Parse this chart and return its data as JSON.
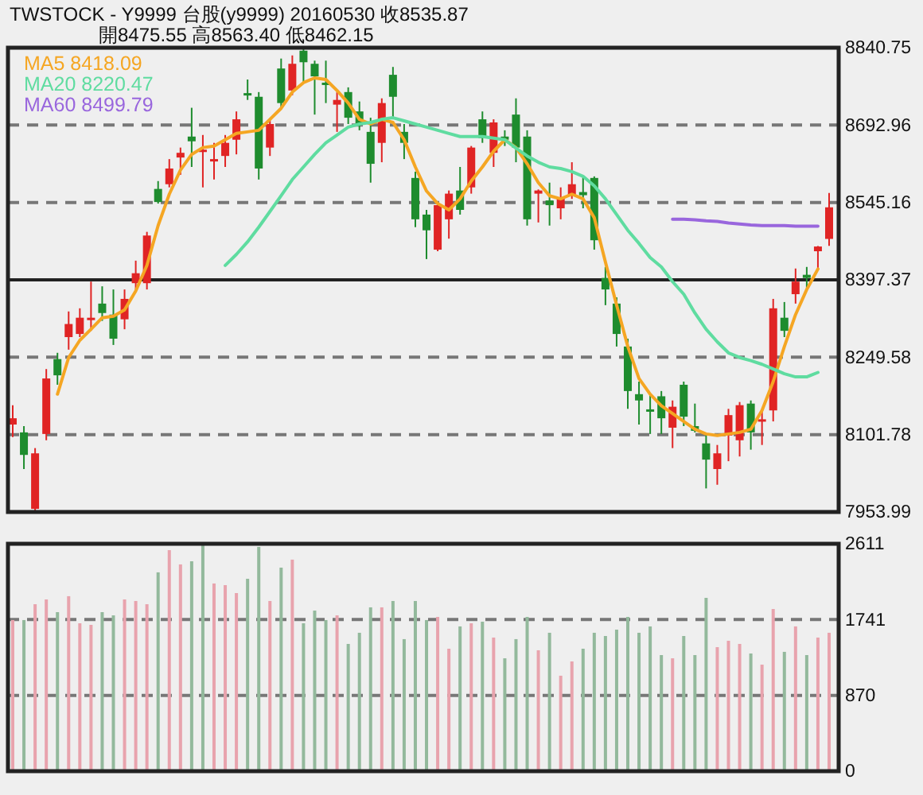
{
  "chart_data": [
    {
      "type": "candlestick",
      "title": "TWSTOCK  - Y9999  台股(y9999) 20160530    收8535.87",
      "subtitle": "開8475.55     高8563.40     低8462.15",
      "categories": [
        null,
        null,
        null,
        null,
        null,
        null,
        null,
        null,
        null,
        null,
        null,
        null,
        null,
        null,
        null,
        null,
        null,
        null,
        null,
        null,
        null,
        null,
        null,
        null,
        null,
        null,
        null,
        null,
        null,
        null,
        null,
        null,
        null,
        null,
        null,
        null,
        null,
        null,
        null,
        null,
        null,
        null,
        null,
        null,
        null,
        null,
        null,
        null,
        null,
        null,
        null,
        null,
        null,
        null,
        null,
        null,
        null,
        null,
        null,
        null,
        null,
        null,
        null,
        null,
        null,
        null,
        null,
        null,
        null,
        null,
        null,
        null,
        null,
        null
      ],
      "ohlc": [
        [
          8121,
          8158,
          8097,
          8133
        ],
        [
          8106,
          8118,
          8036,
          8063
        ],
        [
          7960,
          8076,
          7955,
          8066
        ],
        [
          8103,
          8227,
          8091,
          8209
        ],
        [
          8246,
          8258,
          8197,
          8215
        ],
        [
          8288,
          8337,
          8264,
          8313
        ],
        [
          8294,
          8343,
          8288,
          8325
        ],
        [
          8322,
          8394,
          8300,
          8325
        ],
        [
          8352,
          8385,
          8319,
          8334
        ],
        [
          8331,
          8379,
          8273,
          8285
        ],
        [
          8322,
          8379,
          8303,
          8361
        ],
        [
          8391,
          8434,
          8379,
          8410
        ],
        [
          8391,
          8489,
          8379,
          8482
        ],
        [
          8571,
          8586,
          8543,
          8546
        ],
        [
          8580,
          8628,
          8574,
          8610
        ],
        [
          8631,
          8650,
          8598,
          8640
        ],
        [
          8671,
          8726,
          8613,
          8662
        ],
        [
          8643,
          8674,
          8574,
          8646
        ],
        [
          8626,
          8659,
          8589,
          8628
        ],
        [
          8634,
          8674,
          8613,
          8659
        ],
        [
          8665,
          8719,
          8637,
          8704
        ],
        [
          8754,
          8780,
          8741,
          8752
        ],
        [
          8747,
          8756,
          8589,
          8610
        ],
        [
          8650,
          8704,
          8634,
          8695
        ],
        [
          8801,
          8820,
          8726,
          8735
        ],
        [
          8759,
          8826,
          8750,
          8810
        ],
        [
          8835,
          8840,
          8774,
          8813
        ],
        [
          8810,
          8816,
          8713,
          8786
        ],
        [
          8774,
          8816,
          8735,
          8771
        ],
        [
          8732,
          8756,
          8680,
          8741
        ],
        [
          8756,
          8765,
          8695,
          8707
        ],
        [
          8719,
          8738,
          8683,
          8695
        ],
        [
          8680,
          8707,
          8583,
          8619
        ],
        [
          8659,
          8744,
          8622,
          8735
        ],
        [
          8789,
          8804,
          8704,
          8747
        ],
        [
          8680,
          8695,
          8628,
          8659
        ],
        [
          8592,
          8604,
          8498,
          8513
        ],
        [
          8522,
          8531,
          8437,
          8492
        ],
        [
          8455,
          8546,
          8452,
          8540
        ],
        [
          8513,
          8568,
          8476,
          8562
        ],
        [
          8568,
          8613,
          8522,
          8531
        ],
        [
          8574,
          8653,
          8562,
          8650
        ],
        [
          8704,
          8719,
          8659,
          8668
        ],
        [
          8640,
          8704,
          8613,
          8698
        ],
        [
          8671,
          8683,
          8653,
          8665
        ],
        [
          8713,
          8744,
          8622,
          8650
        ],
        [
          8671,
          8683,
          8501,
          8513
        ],
        [
          8562,
          8570,
          8507,
          8568
        ],
        [
          8549,
          8583,
          8501,
          8540
        ],
        [
          8534,
          8574,
          8513,
          8555
        ],
        [
          8559,
          8622,
          8552,
          8580
        ],
        [
          8565,
          8595,
          8534,
          8559
        ],
        [
          8592,
          8595,
          8455,
          8473
        ],
        [
          8401,
          8422,
          8349,
          8379
        ],
        [
          8352,
          8364,
          8270,
          8294
        ],
        [
          8270,
          8285,
          8151,
          8185
        ],
        [
          8179,
          8203,
          8121,
          8167
        ],
        [
          8150,
          8179,
          8103,
          8148
        ],
        [
          8175,
          8185,
          8103,
          8133
        ],
        [
          8115,
          8167,
          8076,
          8155
        ],
        [
          8197,
          8203,
          8118,
          8136
        ],
        [
          8118,
          8161,
          8106,
          8109
        ],
        [
          8085,
          8103,
          7999,
          8054
        ],
        [
          8036,
          8082,
          8006,
          8066
        ],
        [
          8100,
          8151,
          8051,
          8139
        ],
        [
          8091,
          8164,
          8060,
          8158
        ],
        [
          8161,
          8167,
          8073,
          8106
        ],
        [
          8128,
          8148,
          8082,
          8131
        ],
        [
          8148,
          8361,
          8127,
          8343
        ],
        [
          8325,
          8355,
          8288,
          8300
        ],
        [
          8370,
          8419,
          8352,
          8394
        ],
        [
          8407,
          8422,
          8379,
          8401
        ],
        [
          8452,
          8462,
          8416,
          8461
        ],
        [
          8475.55,
          8563.4,
          8462.15,
          8535.87
        ]
      ],
      "colors": [
        "#e02424",
        "#1e8c2e",
        "#e02424",
        "#e02424",
        "#1e8c2e",
        "#e02424",
        "#e02424",
        "#e02424",
        "#1e8c2e",
        "#1e8c2e",
        "#e02424",
        "#e02424",
        "#e02424",
        "#1e8c2e",
        "#e02424",
        "#e02424",
        "#1e8c2e",
        "#e02424",
        "#e02424",
        "#e02424",
        "#e02424",
        "#1e8c2e",
        "#1e8c2e",
        "#e02424",
        "#1e8c2e",
        "#e02424",
        "#1e8c2e",
        "#1e8c2e",
        "#1e8c2e",
        "#e02424",
        "#1e8c2e",
        "#1e8c2e",
        "#1e8c2e",
        "#e02424",
        "#1e8c2e",
        "#1e8c2e",
        "#1e8c2e",
        "#1e8c2e",
        "#e02424",
        "#e02424",
        "#1e8c2e",
        "#e02424",
        "#1e8c2e",
        "#e02424",
        "#1e8c2e",
        "#1e8c2e",
        "#1e8c2e",
        "#e02424",
        "#1e8c2e",
        "#e02424",
        "#e02424",
        "#1e8c2e",
        "#1e8c2e",
        "#1e8c2e",
        "#1e8c2e",
        "#1e8c2e",
        "#1e8c2e",
        "#1e8c2e",
        "#1e8c2e",
        "#e02424",
        "#1e8c2e",
        "#1e8c2e",
        "#1e8c2e",
        "#e02424",
        "#e02424",
        "#e02424",
        "#1e8c2e",
        "#e02424",
        "#e02424",
        "#1e8c2e",
        "#e02424",
        "#1e8c2e",
        "#e02424",
        "#e02424"
      ],
      "series": [
        {
          "type": "line",
          "name": "MA5 8418.09",
          "color": "#f5a623",
          "values": [
            null,
            null,
            null,
            null,
            8179,
            8249,
            8282,
            8303,
            8325,
            8328,
            8340,
            8376,
            8425,
            8501,
            8561,
            8607,
            8637,
            8650,
            8653,
            8665,
            8677,
            8680,
            8683,
            8704,
            8725,
            8756,
            8774,
            8783,
            8780,
            8759,
            8735,
            8704,
            8695,
            8704,
            8698,
            8665,
            8613,
            8567,
            8543,
            8531,
            8552,
            8586,
            8613,
            8643,
            8665,
            8650,
            8619,
            8583,
            8558,
            8552,
            8561,
            8552,
            8516,
            8431,
            8349,
            8270,
            8209,
            8179,
            8157,
            8142,
            8127,
            8112,
            8103,
            8100,
            8103,
            8106,
            8112,
            8148,
            8203,
            8270,
            8331,
            8379,
            8418.09,
            null
          ]
        },
        {
          "type": "line",
          "name": "MA20 8220.47",
          "color": "#5fdca0",
          "values": [
            null,
            null,
            null,
            null,
            null,
            null,
            null,
            null,
            null,
            null,
            null,
            null,
            null,
            null,
            null,
            null,
            null,
            null,
            null,
            8425,
            8446,
            8470,
            8498,
            8528,
            8558,
            8589,
            8613,
            8637,
            8659,
            8674,
            8689,
            8695,
            8698,
            8704,
            8707,
            8701,
            8695,
            8689,
            8683,
            8677,
            8671,
            8671,
            8671,
            8668,
            8665,
            8649,
            8634,
            8622,
            8613,
            8610,
            8604,
            8595,
            8577,
            8552,
            8522,
            8492,
            8467,
            8440,
            8422,
            8394,
            8370,
            8334,
            8303,
            8279,
            8258,
            8249,
            8243,
            8236,
            8227,
            8218,
            8212,
            8212,
            8220.47,
            null
          ]
        },
        {
          "type": "line",
          "name": "MA60 8499.79",
          "color": "#9966dd",
          "values": [
            null,
            null,
            null,
            null,
            null,
            null,
            null,
            null,
            null,
            null,
            null,
            null,
            null,
            null,
            null,
            null,
            null,
            null,
            null,
            null,
            null,
            null,
            null,
            null,
            null,
            null,
            null,
            null,
            null,
            null,
            null,
            null,
            null,
            null,
            null,
            null,
            null,
            null,
            null,
            null,
            null,
            null,
            null,
            null,
            null,
            null,
            null,
            null,
            null,
            null,
            null,
            null,
            null,
            null,
            null,
            null,
            null,
            null,
            null,
            8513,
            8513,
            8512,
            8510,
            8509,
            8506,
            8504,
            8502,
            8501,
            8501,
            8501,
            8500,
            8500,
            8499.79,
            null
          ]
        }
      ],
      "ylim": [
        7953.99,
        8840.75
      ],
      "yticks": [
        7953.99,
        8101.78,
        8249.58,
        8397.37,
        8545.16,
        8692.96,
        8840.75
      ],
      "ref_lines": [
        {
          "axis": "y",
          "value": 8397.37,
          "color": "#222222",
          "line_style": "solid"
        }
      ],
      "grid": "y",
      "legend": "top left",
      "tick_labels": "y"
    },
    {
      "type": "bar",
      "categories": [
        null,
        null,
        null,
        null,
        null,
        null,
        null,
        null,
        null,
        null,
        null,
        null,
        null,
        null,
        null,
        null,
        null,
        null,
        null,
        null,
        null,
        null,
        null,
        null,
        null,
        null,
        null,
        null,
        null,
        null,
        null,
        null,
        null,
        null,
        null,
        null,
        null,
        null,
        null,
        null,
        null,
        null,
        null,
        null,
        null,
        null,
        null,
        null,
        null,
        null,
        null,
        null,
        null,
        null,
        null,
        null,
        null,
        null,
        null,
        null,
        null,
        null,
        null,
        null,
        null,
        null,
        null,
        null,
        null,
        null,
        null,
        null,
        null,
        null
      ],
      "values": [
        1735,
        1735,
        1917,
        1972,
        1826,
        2009,
        1698,
        1680,
        1826,
        1789,
        1972,
        1954,
        1917,
        2283,
        2538,
        2374,
        2410,
        2611,
        2155,
        2136,
        2045,
        2209,
        2575,
        1954,
        2337,
        2429,
        1698,
        1844,
        1735,
        1789,
        1461,
        1589,
        1881,
        1881,
        1954,
        1516,
        1954,
        1735,
        1771,
        1406,
        1662,
        1698,
        1716,
        1534,
        1296,
        1516,
        1771,
        1388,
        1589,
        1096,
        1260,
        1406,
        1589,
        1552,
        1625,
        1771,
        1589,
        1662,
        1333,
        1296,
        1552,
        1333,
        1990,
        1424,
        1497,
        1461,
        1351,
        1223,
        1862,
        1370,
        1662,
        1333,
        1534,
        1589
      ],
      "colors": [
        "#e8a3ad",
        "#93b99c",
        "#e8a3ad",
        "#e8a3ad",
        "#93b99c",
        "#e8a3ad",
        "#e8a3ad",
        "#e8a3ad",
        "#93b99c",
        "#93b99c",
        "#e8a3ad",
        "#e8a3ad",
        "#e8a3ad",
        "#93b99c",
        "#e8a3ad",
        "#e8a3ad",
        "#93b99c",
        "#93b99c",
        "#e8a3ad",
        "#e8a3ad",
        "#e8a3ad",
        "#93b99c",
        "#93b99c",
        "#e8a3ad",
        "#93b99c",
        "#e8a3ad",
        "#93b99c",
        "#93b99c",
        "#93b99c",
        "#e8a3ad",
        "#93b99c",
        "#93b99c",
        "#93b99c",
        "#e8a3ad",
        "#93b99c",
        "#93b99c",
        "#93b99c",
        "#93b99c",
        "#e8a3ad",
        "#e8a3ad",
        "#93b99c",
        "#e8a3ad",
        "#93b99c",
        "#e8a3ad",
        "#93b99c",
        "#93b99c",
        "#93b99c",
        "#e8a3ad",
        "#93b99c",
        "#e8a3ad",
        "#e8a3ad",
        "#93b99c",
        "#93b99c",
        "#93b99c",
        "#93b99c",
        "#93b99c",
        "#93b99c",
        "#93b99c",
        "#93b99c",
        "#e8a3ad",
        "#93b99c",
        "#93b99c",
        "#93b99c",
        "#e8a3ad",
        "#e8a3ad",
        "#e8a3ad",
        "#93b99c",
        "#e8a3ad",
        "#e8a3ad",
        "#93b99c",
        "#e8a3ad",
        "#93b99c",
        "#e8a3ad",
        "#e8a3ad"
      ],
      "ylim": [
        0,
        2611
      ],
      "yticks": [
        0,
        870,
        1741,
        2611
      ],
      "grid": "y",
      "tick_labels": "y"
    }
  ]
}
